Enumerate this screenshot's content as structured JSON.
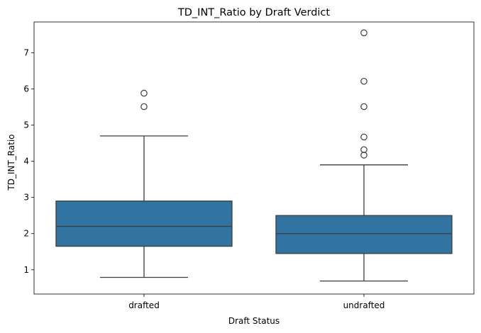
{
  "chart_data": {
    "type": "box",
    "title": "TD_INT_Ratio by Draft Verdict",
    "xlabel": "Draft Status",
    "ylabel": "TD_INT_Ratio",
    "categories": [
      "drafted",
      "undrafted"
    ],
    "ylim": [
      0.33,
      7.85
    ],
    "yticks": [
      1,
      2,
      3,
      4,
      5,
      6,
      7
    ],
    "box_color": "#3274a1",
    "line_color": "#3d3d3d",
    "grid": false,
    "boxes": [
      {
        "category": "drafted",
        "whisker_low": 0.79,
        "q1": 1.65,
        "median": 2.2,
        "q3": 2.9,
        "whisker_high": 4.7,
        "outliers": [
          5.51,
          5.88
        ]
      },
      {
        "category": "undrafted",
        "whisker_low": 0.69,
        "q1": 1.45,
        "median": 2.0,
        "q3": 2.5,
        "whisker_high": 3.9,
        "outliers": [
          4.17,
          4.32,
          4.67,
          5.51,
          6.21,
          7.55
        ]
      }
    ]
  }
}
